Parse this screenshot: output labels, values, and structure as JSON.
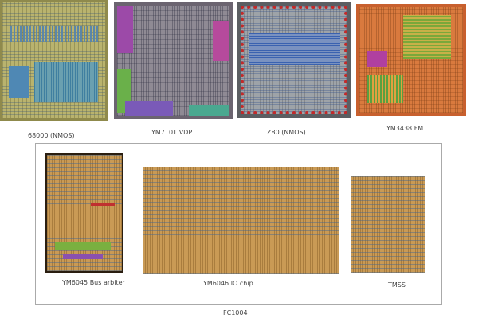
{
  "top_chips": [
    {
      "label": "68000 (NMOS)"
    },
    {
      "label": "YM7101 VDP"
    },
    {
      "label": "Z80 (NMOS)"
    },
    {
      "label": "YM3438 FM"
    }
  ],
  "fc1004": {
    "label": "FC1004",
    "chips": [
      {
        "label": "YM6045 Bus arbiter"
      },
      {
        "label": "YM6046 IO chip"
      },
      {
        "label": "TMSS"
      }
    ]
  }
}
